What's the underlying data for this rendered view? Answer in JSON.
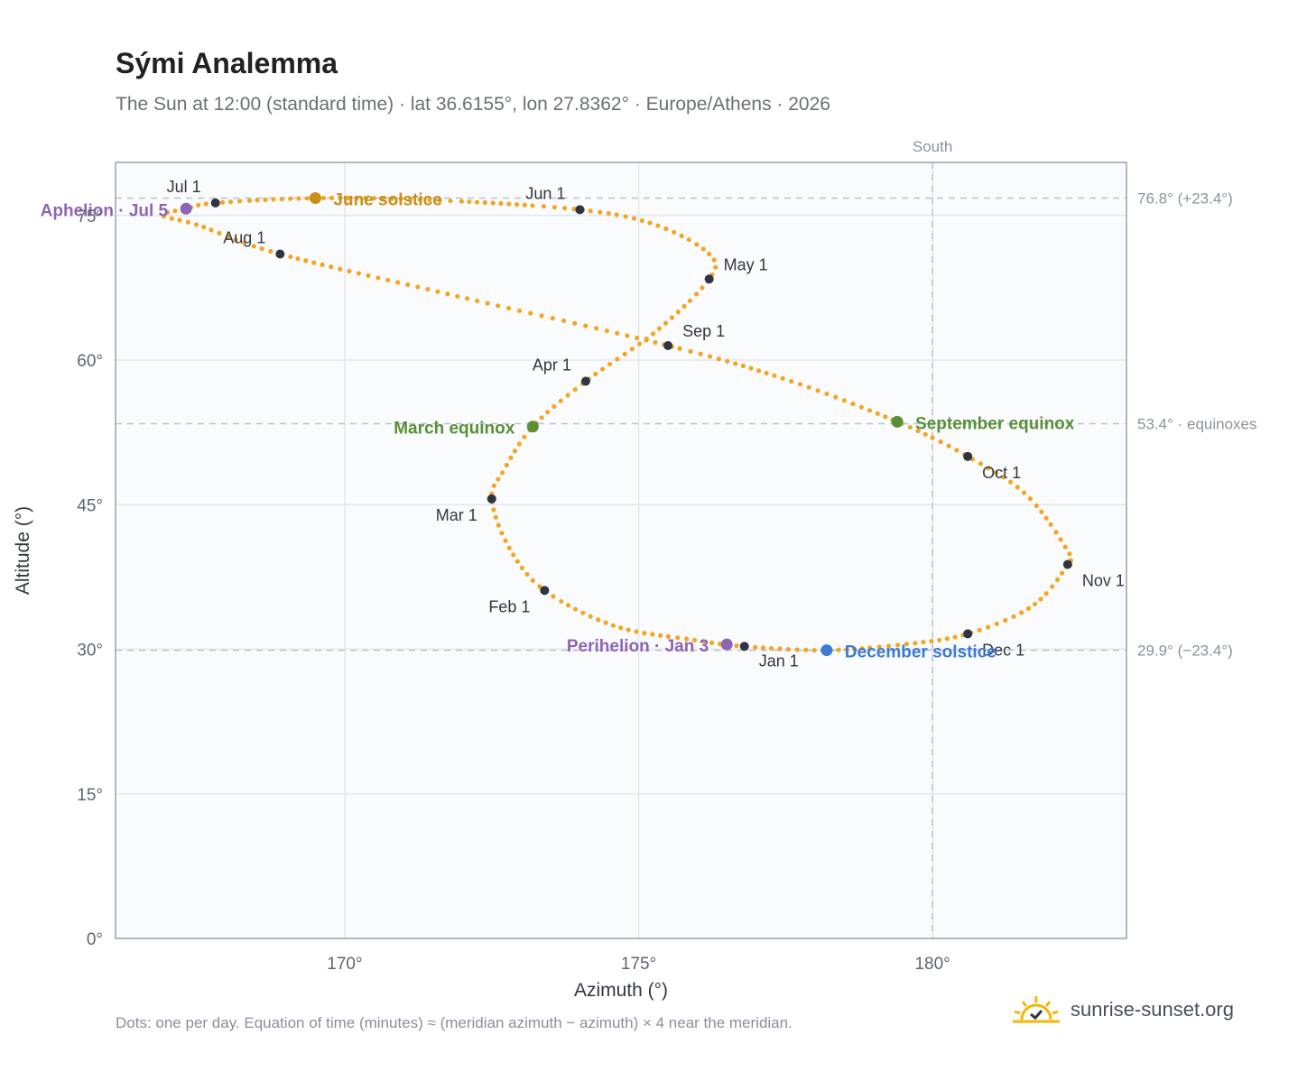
{
  "title": "Sými Analemma",
  "subtitle": "The Sun at 12:00 (standard time) · lat 36.6155°, lon 27.8362° · Europe/Athens · 2026",
  "footnote": "Dots: one per day. Equation of time (minutes) ≈ (meridian azimuth − azimuth) × 4 near the meridian.",
  "brand": {
    "text": "sunrise-sunset.org",
    "icon": "sun-logo-icon"
  },
  "colors": {
    "curve": "#f2a623",
    "month_marker": "#2f3540",
    "june_solstice": "#c8901a",
    "december_solstice": "#3b7bd4",
    "equinox": "#5a8f35",
    "apsis": "#8e65b5",
    "plot_bg": "#f9fbfd",
    "grid": "#e3e8ee",
    "reference_line": "#b9c3cf"
  },
  "chart_data": {
    "type": "scatter",
    "xlabel": "Azimuth (°)",
    "ylabel": "Altitude (°)",
    "xlim": [
      166.1,
      183.3
    ],
    "ylim": [
      0,
      80.5
    ],
    "x_ticks": [
      170,
      175,
      180
    ],
    "x_tick_labels": [
      "170°",
      "175°",
      "180°"
    ],
    "y_ticks": [
      0,
      15,
      30,
      45,
      60,
      75
    ],
    "y_tick_labels": [
      "0°",
      "15°",
      "30°",
      "45°",
      "60°",
      "75°"
    ],
    "grid": true,
    "south_line": {
      "azimuth": 180,
      "label": "South"
    },
    "reference_lines": [
      {
        "altitude": 76.8,
        "label": "76.8° (+23.4°)"
      },
      {
        "altitude": 53.4,
        "label": "53.4° · equinoxes"
      },
      {
        "altitude": 29.9,
        "label": "29.9° (−23.4°)"
      }
    ],
    "series": [
      {
        "points": [
          [
            176.8,
            30.3
          ],
          [
            175.9,
            31.0
          ],
          [
            174.6,
            32.4
          ],
          [
            173.4,
            36.1
          ],
          [
            172.8,
            40.5
          ],
          [
            172.5,
            45.6
          ],
          [
            172.7,
            48.5
          ],
          [
            173.2,
            53.1
          ],
          [
            174.1,
            57.8
          ],
          [
            175.3,
            63.0
          ],
          [
            176.2,
            68.4
          ],
          [
            176.2,
            71.0
          ],
          [
            175.3,
            74.0
          ],
          [
            174.0,
            75.6
          ],
          [
            171.5,
            76.6
          ],
          [
            169.5,
            76.8
          ],
          [
            167.8,
            76.3
          ],
          [
            167.3,
            75.7
          ],
          [
            166.9,
            75.0
          ],
          [
            167.5,
            74.0
          ],
          [
            168.9,
            71.0
          ],
          [
            172.0,
            66.5
          ],
          [
            175.5,
            61.5
          ],
          [
            177.5,
            58.0
          ],
          [
            179.4,
            53.6
          ],
          [
            180.6,
            50.0
          ],
          [
            181.6,
            46.0
          ],
          [
            182.3,
            40.2
          ],
          [
            182.3,
            38.8
          ],
          [
            181.7,
            34.5
          ],
          [
            180.6,
            31.6
          ],
          [
            179.5,
            30.5
          ],
          [
            178.2,
            29.9
          ],
          [
            176.8,
            30.3
          ]
        ]
      }
    ],
    "month_markers": [
      {
        "label": "Jan 1",
        "x": 176.8,
        "y": 30.3
      },
      {
        "label": "Feb 1",
        "x": 173.4,
        "y": 36.1
      },
      {
        "label": "Mar 1",
        "x": 172.5,
        "y": 45.6
      },
      {
        "label": "Apr 1",
        "x": 174.1,
        "y": 57.8
      },
      {
        "label": "May 1",
        "x": 176.2,
        "y": 68.4
      },
      {
        "label": "Jun 1",
        "x": 174.0,
        "y": 75.6
      },
      {
        "label": "Jul 1",
        "x": 167.8,
        "y": 76.3
      },
      {
        "label": "Aug 1",
        "x": 168.9,
        "y": 71.0
      },
      {
        "label": "Sep 1",
        "x": 175.5,
        "y": 61.5
      },
      {
        "label": "Oct 1",
        "x": 180.6,
        "y": 50.0
      },
      {
        "label": "Nov 1",
        "x": 182.3,
        "y": 38.8
      },
      {
        "label": "Dec 1",
        "x": 180.6,
        "y": 31.6
      }
    ],
    "events": [
      {
        "label": "June solstice",
        "x": 169.5,
        "y": 76.8,
        "kind": "june_solstice"
      },
      {
        "label": "December solstice",
        "x": 178.2,
        "y": 29.9,
        "kind": "december_solstice"
      },
      {
        "label": "March equinox",
        "x": 173.2,
        "y": 53.1,
        "kind": "equinox"
      },
      {
        "label": "September equinox",
        "x": 179.4,
        "y": 53.6,
        "kind": "equinox"
      },
      {
        "label": "Aphelion · Jul 5",
        "x": 167.3,
        "y": 75.7,
        "kind": "apsis"
      },
      {
        "label": "Perihelion · Jan 3",
        "x": 176.5,
        "y": 30.5,
        "kind": "apsis"
      }
    ]
  }
}
